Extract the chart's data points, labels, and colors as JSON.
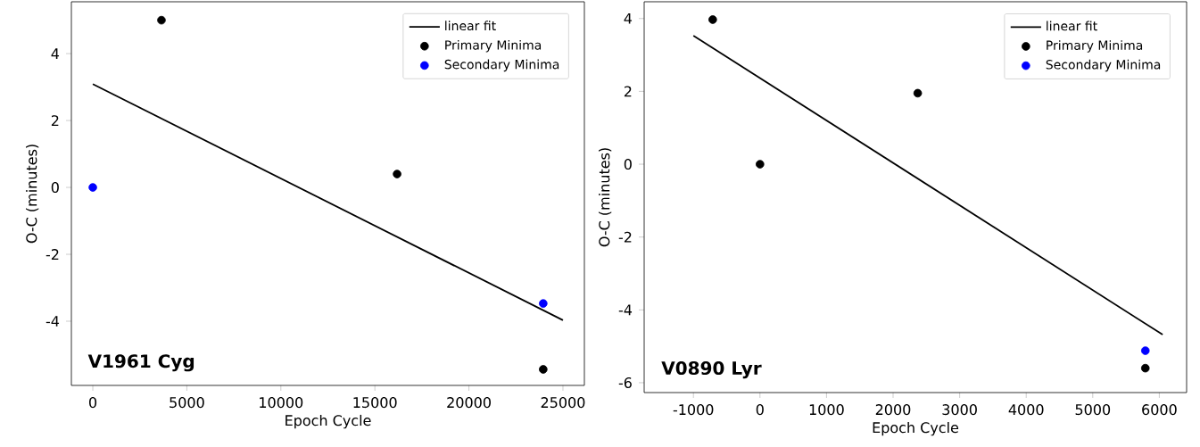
{
  "chart_data": [
    {
      "type": "scatter",
      "xlabel": "Epoch Cycle",
      "ylabel": "O-C (minutes)",
      "annotations": [
        "V1961 Cyg"
      ],
      "xlim": [
        -1140,
        26140
      ],
      "ylim": [
        -5.92,
        5.55
      ],
      "xticks": [
        0,
        5000,
        10000,
        15000,
        20000,
        25000
      ],
      "yticks": [
        -4,
        -2,
        0,
        2,
        4
      ],
      "legend": "top right",
      "grid": false,
      "series": [
        {
          "name": "linear fit",
          "type": "line",
          "color": "#000000",
          "marker": "none",
          "x": [
            0,
            25000
          ],
          "values": [
            3.09,
            -3.97
          ]
        },
        {
          "name": "Primary Minima",
          "color": "#000000",
          "marker": "circle",
          "x": [
            3650,
            16180,
            23950
          ],
          "values": [
            5.0,
            0.4,
            -5.44
          ]
        },
        {
          "name": "Secondary Minima",
          "color": "#0000ff",
          "marker": "circle",
          "x": [
            0,
            23950
          ],
          "values": [
            0,
            -3.47
          ]
        }
      ]
    },
    {
      "type": "scatter",
      "xlabel": "Epoch Cycle",
      "ylabel": "O-C (minutes)",
      "annotations": [
        "V0890 Lyr"
      ],
      "xlim": [
        -1740,
        6410
      ],
      "ylim": [
        -6.27,
        4.46
      ],
      "xticks": [
        -1000,
        0,
        1000,
        2000,
        3000,
        4000,
        5000,
        6000
      ],
      "yticks": [
        -6,
        -4,
        -2,
        0,
        2,
        4
      ],
      "legend": "top right",
      "grid": false,
      "series": [
        {
          "name": "linear fit",
          "type": "line",
          "color": "#000000",
          "marker": "none",
          "x": [
            -1000,
            6050
          ],
          "values": [
            3.53,
            -4.68
          ]
        },
        {
          "name": "Primary Minima",
          "color": "#000000",
          "marker": "circle",
          "x": [
            -710,
            0,
            2370,
            5790
          ],
          "values": [
            3.97,
            0,
            1.95,
            -5.6
          ]
        },
        {
          "name": "Secondary Minima",
          "color": "#0000ff",
          "marker": "circle",
          "x": [
            5790
          ],
          "values": [
            -5.12
          ]
        }
      ]
    }
  ]
}
